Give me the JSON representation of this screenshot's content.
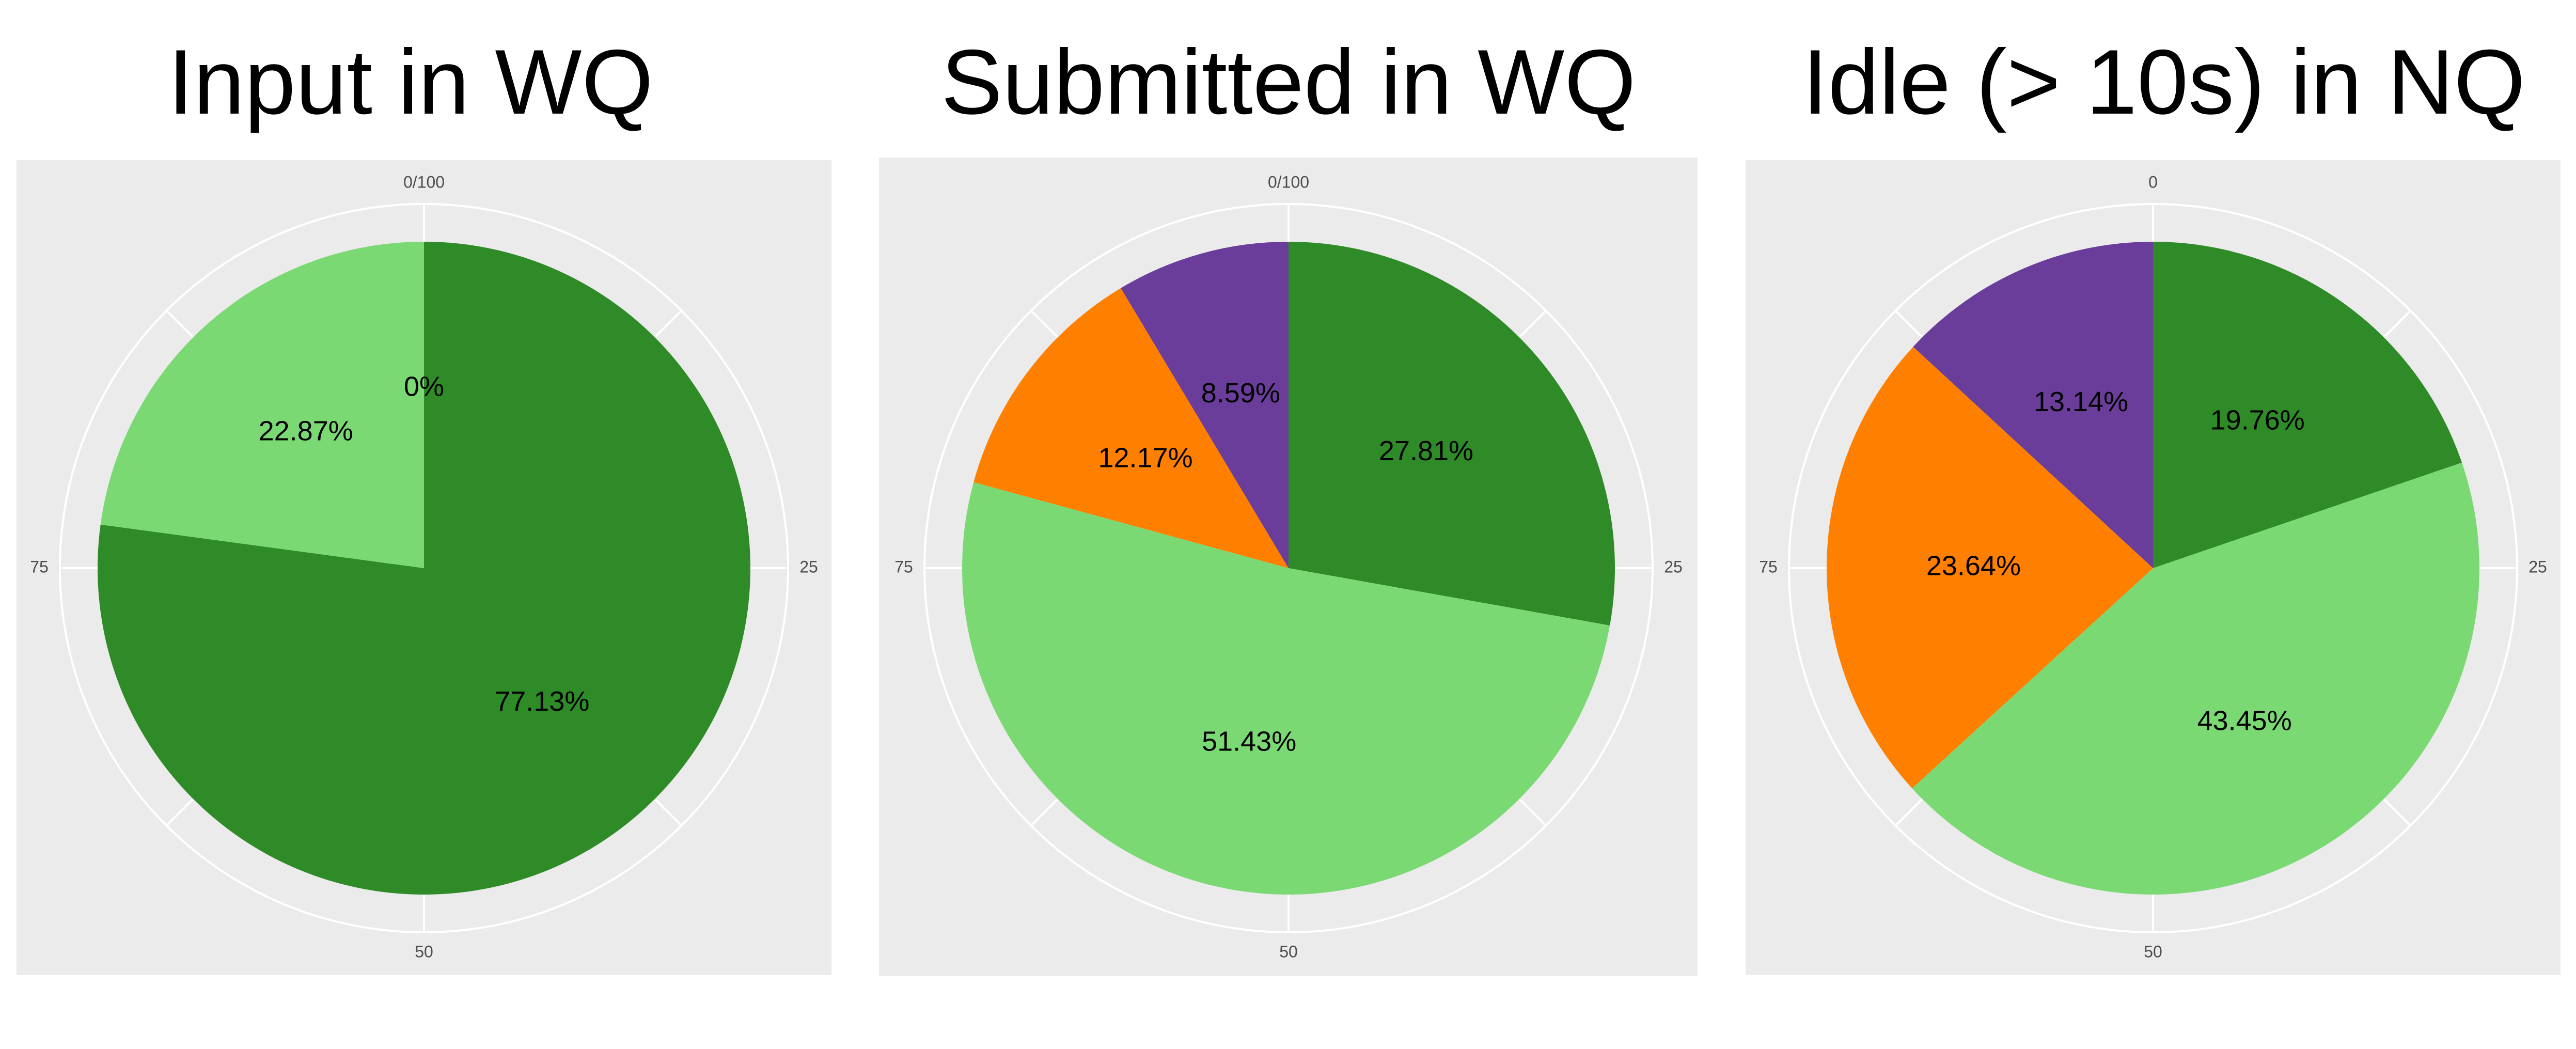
{
  "colors": {
    "dark-green": "#2e8b27",
    "light-green": "#7bd974",
    "orange": "#ff7f00",
    "purple": "#6a3d9a",
    "panel": "#ebebeb",
    "grid": "#ffffff"
  },
  "chart_data": [
    {
      "type": "pie",
      "title": "Input in WQ",
      "tick_labels": [
        "0/100",
        "25",
        "50",
        "75"
      ],
      "slices": [
        {
          "value": 77.13,
          "label": "77.13%",
          "color": "dark-green"
        },
        {
          "value": 22.87,
          "label": "22.87%",
          "color": "light-green"
        },
        {
          "value": 0,
          "label": "0%",
          "color": "orange"
        }
      ]
    },
    {
      "type": "pie",
      "title": "Submitted in WQ",
      "tick_labels": [
        "0/100",
        "25",
        "50",
        "75"
      ],
      "slices": [
        {
          "value": 27.81,
          "label": "27.81%",
          "color": "dark-green"
        },
        {
          "value": 51.43,
          "label": "51.43%",
          "color": "light-green"
        },
        {
          "value": 12.17,
          "label": "12.17%",
          "color": "orange"
        },
        {
          "value": 8.59,
          "label": "8.59%",
          "color": "purple"
        }
      ]
    },
    {
      "type": "pie",
      "title": "Idle (> 10s) in NQ",
      "tick_labels": [
        "0",
        "25",
        "50",
        "75"
      ],
      "slices": [
        {
          "value": 19.76,
          "label": "19.76%",
          "color": "dark-green"
        },
        {
          "value": 43.45,
          "label": "43.45%",
          "color": "light-green"
        },
        {
          "value": 23.64,
          "label": "23.64%",
          "color": "orange"
        },
        {
          "value": 13.14,
          "label": "13.14%",
          "color": "purple"
        }
      ]
    }
  ]
}
